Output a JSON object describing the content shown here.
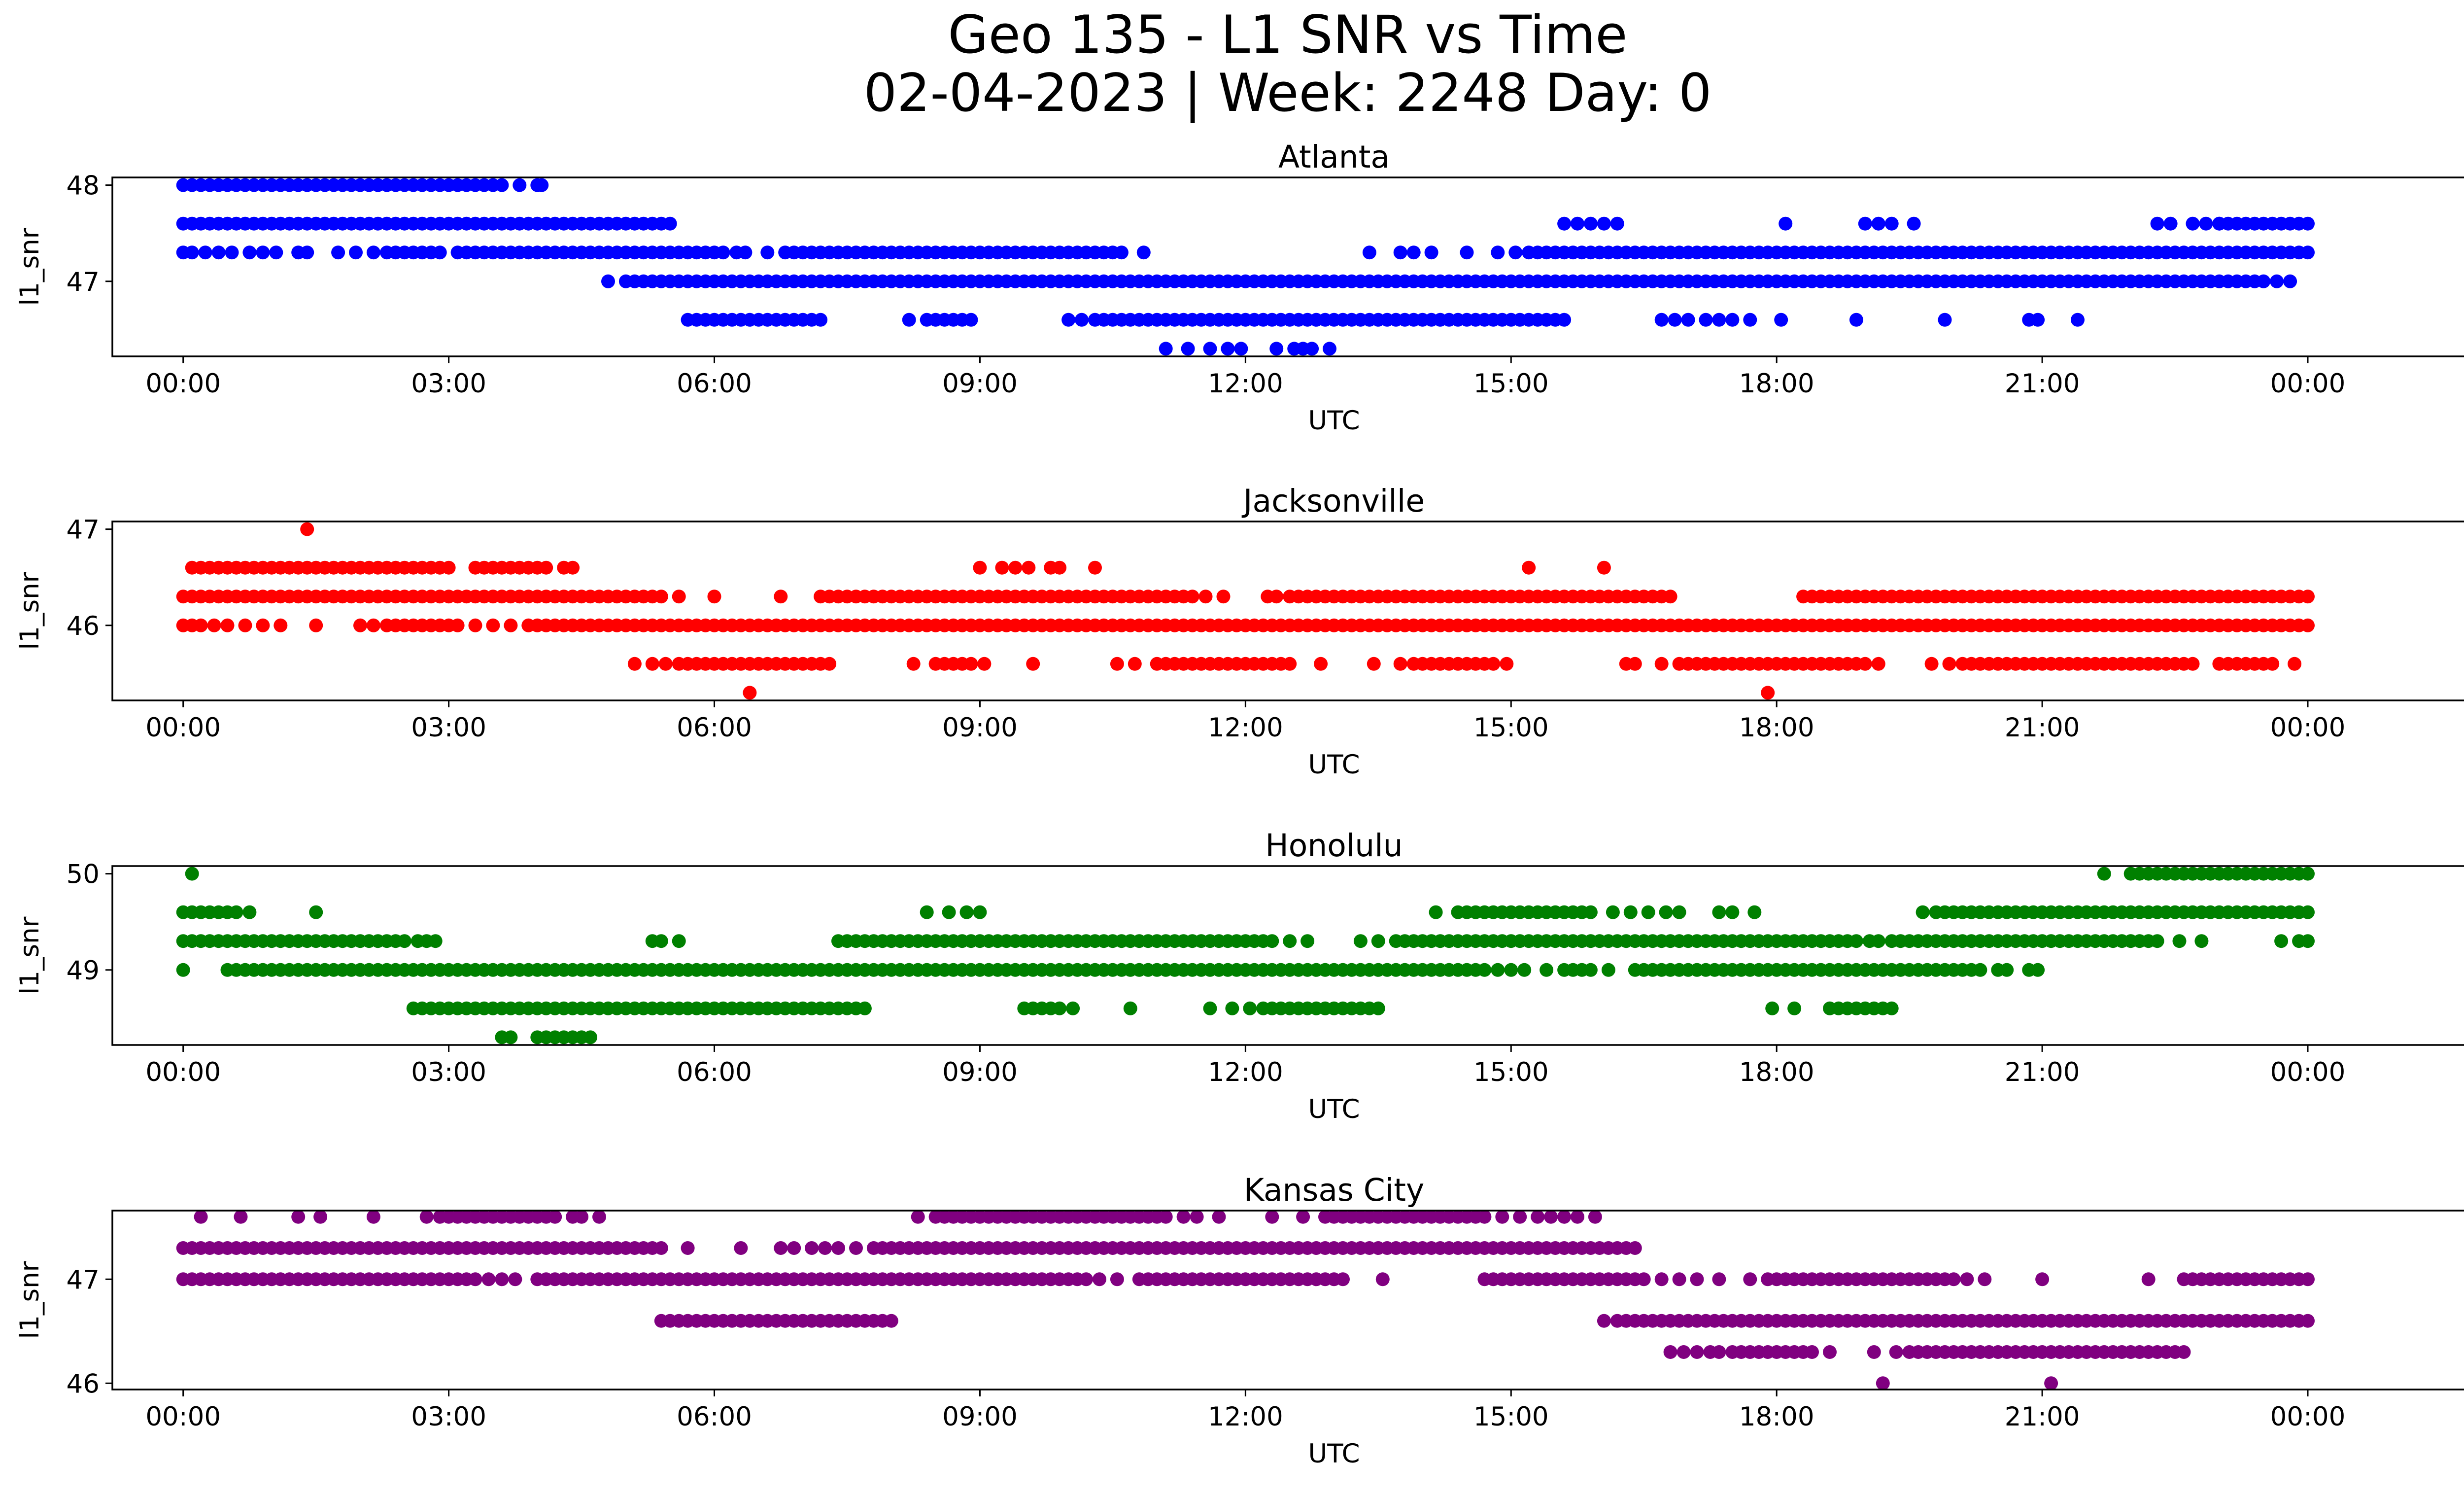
{
  "title": "Geo 135 - L1 SNR vs Time",
  "subtitle": "02-04-2023 | Week: 2248 Day: 0",
  "chart_data": [
    {
      "type": "scatter",
      "title": "Atlanta",
      "xlabel": "UTC",
      "ylabel": "l1_snr",
      "color": "#0000ff",
      "xlim": [
        -0.8,
        26.8
      ],
      "ylim": [
        46.22,
        48.08
      ],
      "xticks": [
        0,
        3,
        6,
        9,
        12,
        15,
        18,
        21,
        24
      ],
      "xtick_labels": [
        "00:00",
        "03:00",
        "06:00",
        "09:00",
        "12:00",
        "15:00",
        "18:00",
        "21:00",
        "00:00"
      ],
      "yticks": [
        47,
        48
      ],
      "ytick_labels": [
        "47",
        "48"
      ],
      "series": [
        {
          "y": 48.0,
          "segments": [
            [
              0.0,
              2.8,
              0.1
            ],
            [
              2.9,
              3.6,
              0.1
            ]
          ],
          "points": [
            3.8,
            4.0,
            4.05
          ]
        },
        {
          "y": 47.6,
          "segments": [
            [
              0.0,
              5.3,
              0.1
            ]
          ],
          "points": [
            5.4,
            5.5,
            15.6,
            15.75,
            15.9,
            16.05,
            16.2,
            18.1,
            19.0,
            19.15,
            19.3,
            19.55,
            22.3,
            22.45,
            22.7,
            22.85,
            23.0
          ],
          "segments2": [
            [
              23.0,
              24.0,
              0.1
            ]
          ]
        },
        {
          "y": 47.3,
          "segments": [
            [
              0.0,
              0.1,
              0.1
            ],
            [
              2.3,
              2.9,
              0.1
            ],
            [
              3.1,
              6.1,
              0.1
            ],
            [
              6.8,
              10.6,
              0.1
            ],
            [
              15.2,
              24.0,
              0.1
            ]
          ],
          "points": [
            0.25,
            0.4,
            0.55,
            0.75,
            0.9,
            1.05,
            1.3,
            1.4,
            1.75,
            1.95,
            2.15,
            6.25,
            6.35,
            6.6,
            10.85,
            13.4,
            13.75,
            13.9,
            14.1,
            14.5,
            14.85,
            15.05
          ]
        },
        {
          "y": 47.0,
          "segments": [
            [
              5.0,
              23.5,
              0.1
            ]
          ],
          "points": [
            4.8,
            23.65,
            23.8
          ]
        },
        {
          "y": 46.6,
          "segments": [
            [
              5.7,
              7.2,
              0.1
            ],
            [
              8.4,
              8.9,
              0.1
            ],
            [
              10.3,
              15.6,
              0.1
            ]
          ],
          "points": [
            8.2,
            10.0,
            10.15,
            16.7,
            16.85,
            17.0,
            17.2,
            17.35,
            17.5,
            17.7,
            18.05,
            18.9,
            19.9,
            20.85,
            20.95,
            21.4
          ]
        },
        {
          "y": 46.3,
          "segments": [],
          "points": [
            11.1,
            11.35,
            11.6,
            11.8,
            11.95,
            12.35,
            12.55,
            12.65,
            12.75,
            12.95
          ]
        }
      ]
    },
    {
      "type": "scatter",
      "title": "Jacksonville",
      "xlabel": "UTC",
      "ylabel": "l1_snr",
      "color": "#ff0000",
      "xlim": [
        -0.8,
        26.8
      ],
      "ylim": [
        45.22,
        47.08
      ],
      "xticks": [
        0,
        3,
        6,
        9,
        12,
        15,
        18,
        21,
        24
      ],
      "xtick_labels": [
        "00:00",
        "03:00",
        "06:00",
        "09:00",
        "12:00",
        "15:00",
        "18:00",
        "21:00",
        "00:00"
      ],
      "yticks": [
        46,
        47
      ],
      "ytick_labels": [
        "46",
        "47"
      ],
      "series": [
        {
          "y": 47.0,
          "segments": [],
          "points": [
            1.4
          ]
        },
        {
          "y": 46.6,
          "segments": [
            [
              0.2,
              3.0,
              0.1
            ],
            [
              3.3,
              4.1,
              0.1
            ]
          ],
          "points": [
            0.1,
            4.3,
            4.4,
            9.0,
            9.25,
            9.4,
            9.55,
            9.8,
            9.9,
            10.3,
            15.2,
            16.05
          ]
        },
        {
          "y": 46.3,
          "segments": [
            [
              0.0,
              5.4,
              0.1
            ],
            [
              7.2,
              11.4,
              0.1
            ],
            [
              12.5,
              16.8,
              0.1
            ],
            [
              18.3,
              24.0,
              0.1
            ]
          ],
          "points": [
            5.6,
            6.0,
            6.75,
            11.55,
            11.75,
            12.25,
            12.35
          ]
        },
        {
          "y": 46.0,
          "segments": [
            [
              0.0,
              0.2,
              0.1
            ],
            [
              2.3,
              3.1,
              0.1
            ],
            [
              3.9,
              24.0,
              0.1
            ]
          ],
          "points": [
            0.35,
            0.5,
            0.7,
            0.9,
            1.1,
            1.5,
            2.0,
            2.15,
            3.3,
            3.5,
            3.7
          ]
        },
        {
          "y": 45.6,
          "segments": [
            [
              5.6,
              7.3,
              0.1
            ],
            [
              8.5,
              8.9,
              0.1
            ],
            [
              11.0,
              12.5,
              0.1
            ],
            [
              14.0,
              14.8,
              0.1
            ],
            [
              16.9,
              19.0,
              0.1
            ],
            [
              20.1,
              22.7,
              0.1
            ],
            [
              23.0,
              23.6,
              0.1
            ]
          ],
          "points": [
            5.1,
            5.3,
            5.45,
            8.25,
            9.05,
            9.6,
            10.55,
            10.75,
            12.85,
            13.45,
            13.75,
            13.9,
            14.95,
            16.3,
            16.4,
            16.7,
            19.15,
            19.75,
            19.95,
            23.85
          ]
        },
        {
          "y": 45.3,
          "segments": [],
          "points": [
            6.4,
            17.9
          ]
        }
      ]
    },
    {
      "type": "scatter",
      "title": "Honolulu",
      "xlabel": "UTC",
      "ylabel": "l1_snr",
      "color": "#008000",
      "xlim": [
        -0.8,
        26.8
      ],
      "ylim": [
        48.22,
        50.08
      ],
      "xticks": [
        0,
        3,
        6,
        9,
        12,
        15,
        18,
        21,
        24
      ],
      "xtick_labels": [
        "00:00",
        "03:00",
        "06:00",
        "09:00",
        "12:00",
        "15:00",
        "18:00",
        "21:00",
        "00:00"
      ],
      "yticks": [
        49,
        50
      ],
      "ytick_labels": [
        "49",
        "50"
      ],
      "series": [
        {
          "y": 50.0,
          "segments": [
            [
              22.0,
              24.0,
              0.1
            ]
          ],
          "points": [
            0.1,
            21.7
          ]
        },
        {
          "y": 49.6,
          "segments": [
            [
              0.0,
              0.5,
              0.1
            ],
            [
              14.4,
              15.9,
              0.1
            ],
            [
              19.9,
              24.0,
              0.1
            ]
          ],
          "points": [
            0.6,
            0.75,
            1.5,
            8.4,
            8.65,
            8.85,
            9.0,
            14.15,
            16.15,
            16.35,
            16.55,
            16.75,
            16.9,
            17.35,
            17.5,
            17.75,
            19.65,
            19.8
          ]
        },
        {
          "y": 49.3,
          "segments": [
            [
              0.0,
              2.5,
              0.1
            ],
            [
              7.4,
              12.3,
              0.1
            ],
            [
              13.7,
              18.9,
              0.1
            ],
            [
              19.3,
              22.3,
              0.1
            ]
          ],
          "points": [
            2.65,
            2.75,
            2.85,
            5.3,
            5.4,
            5.6,
            12.5,
            12.7,
            13.3,
            13.5,
            19.05,
            19.15,
            22.55,
            22.8,
            23.7,
            23.9,
            24.0
          ]
        },
        {
          "y": 49.0,
          "segments": [
            [
              0.6,
              4.2,
              0.1
            ],
            [
              4.4,
              14.7,
              0.1
            ],
            [
              15.6,
              15.9,
              0.1
            ],
            [
              16.4,
              20.3,
              0.1
            ]
          ],
          "points": [
            0.0,
            0.5,
            4.3,
            14.85,
            15.0,
            15.15,
            15.4,
            16.1,
            20.5,
            20.6,
            20.85,
            20.95
          ]
        },
        {
          "y": 48.6,
          "segments": [
            [
              2.6,
              7.6,
              0.1
            ],
            [
              9.5,
              9.9,
              0.1
            ],
            [
              12.2,
              13.4,
              0.1
            ],
            [
              18.6,
              19.3,
              0.1
            ]
          ],
          "points": [
            7.7,
            10.05,
            10.7,
            11.6,
            11.85,
            12.05,
            13.5,
            17.95,
            18.2
          ]
        },
        {
          "y": 48.3,
          "segments": [
            [
              4.0,
              4.6,
              0.1
            ]
          ],
          "points": [
            3.6,
            3.7
          ]
        }
      ]
    },
    {
      "type": "scatter",
      "title": "Kansas City",
      "xlabel": "UTC",
      "ylabel": "l1_snr",
      "color": "#800080",
      "xlim": [
        -0.8,
        26.8
      ],
      "ylim": [
        45.94,
        47.66
      ],
      "xticks": [
        0,
        3,
        6,
        9,
        12,
        15,
        18,
        21,
        24
      ],
      "xtick_labels": [
        "00:00",
        "03:00",
        "06:00",
        "09:00",
        "12:00",
        "15:00",
        "18:00",
        "21:00",
        "00:00"
      ],
      "yticks": [
        46,
        47
      ],
      "ytick_labels": [
        "46",
        "47"
      ],
      "series": [
        {
          "y": 47.6,
          "segments": [
            [
              3.0,
              4.2,
              0.1
            ],
            [
              8.5,
              11.1,
              0.1
            ],
            [
              12.9,
              14.7,
              0.1
            ]
          ],
          "points": [
            0.2,
            0.65,
            1.3,
            1.55,
            2.15,
            2.75,
            2.9,
            4.4,
            4.5,
            4.7,
            8.3,
            11.3,
            11.45,
            11.7,
            12.3,
            12.65,
            14.9,
            15.1,
            15.3,
            15.45,
            15.6,
            15.75,
            15.95
          ]
        },
        {
          "y": 47.3,
          "segments": [
            [
              0.0,
              5.4,
              0.1
            ],
            [
              7.8,
              16.4,
              0.1
            ]
          ],
          "points": [
            5.7,
            6.3,
            6.75,
            6.9,
            7.1,
            7.25,
            7.4,
            7.6
          ]
        },
        {
          "y": 47.0,
          "segments": [
            [
              0.0,
              3.2,
              0.1
            ],
            [
              4.0,
              10.2,
              0.1
            ],
            [
              10.8,
              13.0,
              0.1
            ],
            [
              14.7,
              16.5,
              0.1
            ],
            [
              17.9,
              20.0,
              0.1
            ],
            [
              22.6,
              24.0,
              0.1
            ]
          ],
          "points": [
            3.3,
            3.45,
            3.6,
            3.75,
            10.35,
            10.55,
            13.1,
            13.55,
            16.7,
            16.9,
            17.1,
            17.35,
            17.7,
            20.15,
            20.35,
            21.0,
            22.2
          ]
        },
        {
          "y": 46.6,
          "segments": [
            [
              5.4,
              7.9,
              0.1
            ],
            [
              16.2,
              24.0,
              0.1
            ]
          ],
          "points": [
            8.0,
            16.05
          ]
        },
        {
          "y": 46.3,
          "segments": [
            [
              17.5,
              18.4,
              0.1
            ],
            [
              19.6,
              22.6,
              0.1
            ]
          ],
          "points": [
            16.8,
            16.95,
            17.1,
            17.25,
            17.35,
            18.6,
            19.1,
            19.35,
            19.5
          ]
        },
        {
          "y": 46.0,
          "segments": [],
          "points": [
            19.2,
            21.1
          ]
        }
      ]
    }
  ]
}
